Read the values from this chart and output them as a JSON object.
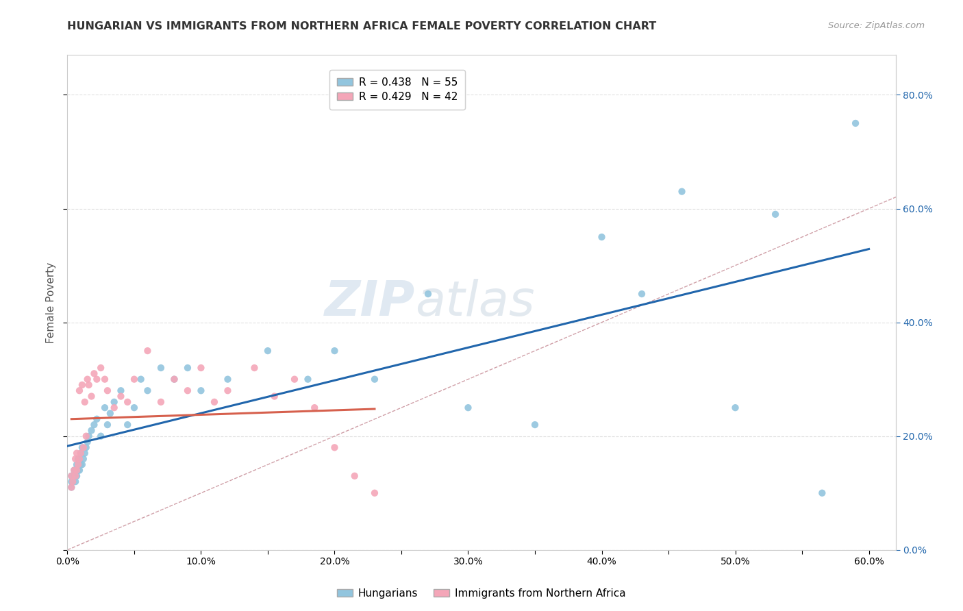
{
  "title": "HUNGARIAN VS IMMIGRANTS FROM NORTHERN AFRICA FEMALE POVERTY CORRELATION CHART",
  "source": "Source: ZipAtlas.com",
  "ylabel": "Female Poverty",
  "watermark_zip": "ZIP",
  "watermark_atlas": "atlas",
  "xlim": [
    0.0,
    0.62
  ],
  "ylim": [
    0.0,
    0.87
  ],
  "xtick_labels": [
    "0.0%",
    "",
    "10.0%",
    "",
    "20.0%",
    "",
    "30.0%",
    "",
    "40.0%",
    "",
    "50.0%",
    "",
    "60.0%"
  ],
  "xtick_values": [
    0.0,
    0.05,
    0.1,
    0.15,
    0.2,
    0.25,
    0.3,
    0.35,
    0.4,
    0.45,
    0.5,
    0.55,
    0.6
  ],
  "ytick_labels": [
    "0.0%",
    "20.0%",
    "40.0%",
    "60.0%",
    "80.0%"
  ],
  "ytick_values": [
    0.0,
    0.2,
    0.4,
    0.6,
    0.8
  ],
  "legend_line1": "R = 0.438   N = 55",
  "legend_line2": "R = 0.429   N = 42",
  "color_blue": "#92c5de",
  "color_pink": "#f4a6b8",
  "trendline_blue_color": "#2166ac",
  "trendline_pink_color": "#d6604d",
  "trendline_diag_color": "#d0a0a8",
  "hungarians_x": [
    0.003,
    0.003,
    0.003,
    0.004,
    0.005,
    0.005,
    0.006,
    0.006,
    0.007,
    0.007,
    0.008,
    0.008,
    0.009,
    0.009,
    0.01,
    0.01,
    0.011,
    0.011,
    0.012,
    0.013,
    0.014,
    0.015,
    0.016,
    0.018,
    0.02,
    0.022,
    0.025,
    0.028,
    0.03,
    0.032,
    0.035,
    0.04,
    0.045,
    0.05,
    0.055,
    0.06,
    0.07,
    0.08,
    0.09,
    0.1,
    0.12,
    0.15,
    0.18,
    0.2,
    0.23,
    0.27,
    0.3,
    0.35,
    0.4,
    0.43,
    0.46,
    0.5,
    0.53,
    0.565,
    0.59
  ],
  "hungarians_y": [
    0.11,
    0.12,
    0.13,
    0.12,
    0.13,
    0.14,
    0.12,
    0.14,
    0.13,
    0.15,
    0.14,
    0.16,
    0.14,
    0.16,
    0.15,
    0.17,
    0.15,
    0.18,
    0.16,
    0.17,
    0.18,
    0.19,
    0.2,
    0.21,
    0.22,
    0.23,
    0.2,
    0.25,
    0.22,
    0.24,
    0.26,
    0.28,
    0.22,
    0.25,
    0.3,
    0.28,
    0.32,
    0.3,
    0.32,
    0.28,
    0.3,
    0.35,
    0.3,
    0.35,
    0.3,
    0.45,
    0.25,
    0.22,
    0.55,
    0.45,
    0.63,
    0.25,
    0.59,
    0.1,
    0.75
  ],
  "africa_x": [
    0.003,
    0.003,
    0.004,
    0.005,
    0.006,
    0.006,
    0.007,
    0.007,
    0.008,
    0.009,
    0.009,
    0.01,
    0.011,
    0.012,
    0.013,
    0.014,
    0.015,
    0.016,
    0.018,
    0.02,
    0.022,
    0.025,
    0.028,
    0.03,
    0.035,
    0.04,
    0.045,
    0.05,
    0.06,
    0.07,
    0.08,
    0.09,
    0.1,
    0.11,
    0.12,
    0.14,
    0.155,
    0.17,
    0.185,
    0.2,
    0.215,
    0.23
  ],
  "africa_y": [
    0.11,
    0.13,
    0.12,
    0.14,
    0.13,
    0.16,
    0.14,
    0.17,
    0.15,
    0.16,
    0.28,
    0.17,
    0.29,
    0.18,
    0.26,
    0.2,
    0.3,
    0.29,
    0.27,
    0.31,
    0.3,
    0.32,
    0.3,
    0.28,
    0.25,
    0.27,
    0.26,
    0.3,
    0.35,
    0.26,
    0.3,
    0.28,
    0.32,
    0.26,
    0.28,
    0.32,
    0.27,
    0.3,
    0.25,
    0.18,
    0.13,
    0.1
  ]
}
